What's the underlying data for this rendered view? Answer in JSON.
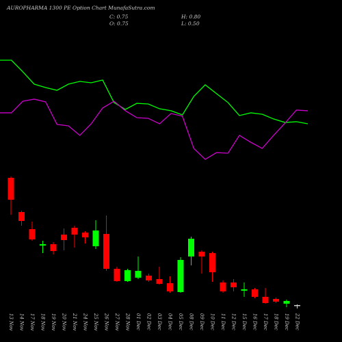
{
  "chart_data": [
    {
      "type": "candlestick",
      "title": "AUROPHARMA 1300 PE Option Chart MunafaSutra.com",
      "summary": [
        "C: 0.75",
        "H: 0.80",
        "O: 0.75",
        "L: 0.50"
      ],
      "categories": [
        "13 Nov",
        "14 Nov",
        "17 Nov",
        "18 Nov",
        "19 Nov",
        "20 Nov",
        "21 Nov",
        "24 Nov",
        "25 Nov",
        "26 Nov",
        "27 Nov",
        "28 Nov",
        "01 Dec",
        "02 Dec",
        "03 Dec",
        "04 Dec",
        "05 Dec",
        "08 Dec",
        "09 Dec",
        "10 Dec",
        "11 Dec",
        "12 Dec",
        "15 Dec",
        "16 Dec",
        "17 Dec",
        "18 Dec",
        "19 Dec",
        "22 Dec"
      ],
      "open": [
        10.05,
        7.55,
        6.3,
        5.1,
        5.2,
        5.9,
        6.4,
        6.05,
        5.05,
        5.95,
        3.4,
        2.5,
        2.75,
        2.9,
        2.65,
        2.35,
        1.7,
        4.3,
        4.65,
        4.55,
        2.4,
        2.4,
        1.8,
        1.9,
        1.35,
        1.2,
        0.85,
        0.75
      ],
      "close": [
        8.45,
        6.9,
        5.55,
        5.2,
        4.7,
        5.5,
        5.9,
        5.7,
        6.2,
        3.4,
        2.5,
        3.3,
        3.25,
        2.55,
        2.3,
        1.75,
        4.05,
        5.6,
        4.3,
        3.15,
        1.75,
        2.05,
        1.9,
        1.35,
        0.9,
        1.0,
        1.05,
        0.75
      ],
      "high": [
        10.15,
        7.65,
        6.85,
        5.45,
        5.35,
        6.35,
        6.55,
        6.15,
        6.95,
        7.3,
        3.55,
        3.4,
        4.3,
        3.05,
        3.55,
        2.85,
        4.25,
        5.75,
        4.75,
        4.65,
        2.55,
        2.65,
        2.4,
        2.0,
        2.0,
        1.3,
        1.15,
        0.8
      ],
      "low": [
        7.35,
        6.55,
        5.45,
        4.55,
        4.45,
        4.75,
        4.95,
        5.25,
        4.85,
        3.25,
        2.45,
        2.45,
        2.65,
        2.45,
        2.25,
        1.65,
        1.65,
        3.65,
        3.05,
        2.45,
        1.65,
        1.75,
        1.35,
        1.25,
        0.85,
        0.9,
        0.6,
        0.5
      ],
      "up_color": "#00ff00",
      "down_color": "#ff0000",
      "ylim": [
        0.45,
        10.55
      ]
    },
    {
      "type": "line",
      "series": [
        {
          "color": "#00ff00",
          "values": [
            95,
            95,
            84.4,
            73.1,
            70,
            67.5,
            73.1,
            75.6,
            74.4,
            76.9,
            56.3,
            50,
            55.6,
            55,
            50.6,
            48.8,
            45,
            61.9,
            72.5,
            64.4,
            56.3,
            44.4,
            46.9,
            45.6,
            41.3,
            38.1,
            38.8,
            36.9
          ]
        },
        {
          "color": "#cc00cc",
          "values": [
            46.9,
            46.9,
            57.5,
            59.4,
            56.9,
            36.3,
            35,
            26.3,
            36.9,
            51.3,
            57.5,
            48.8,
            42.5,
            41.9,
            36.9,
            46.3,
            43.8,
            14.4,
            4.4,
            10.6,
            10,
            26.3,
            20,
            14.4,
            26.3,
            37.5,
            49.4,
            48.8
          ]
        }
      ],
      "ylim": [
        0,
        100
      ]
    }
  ]
}
